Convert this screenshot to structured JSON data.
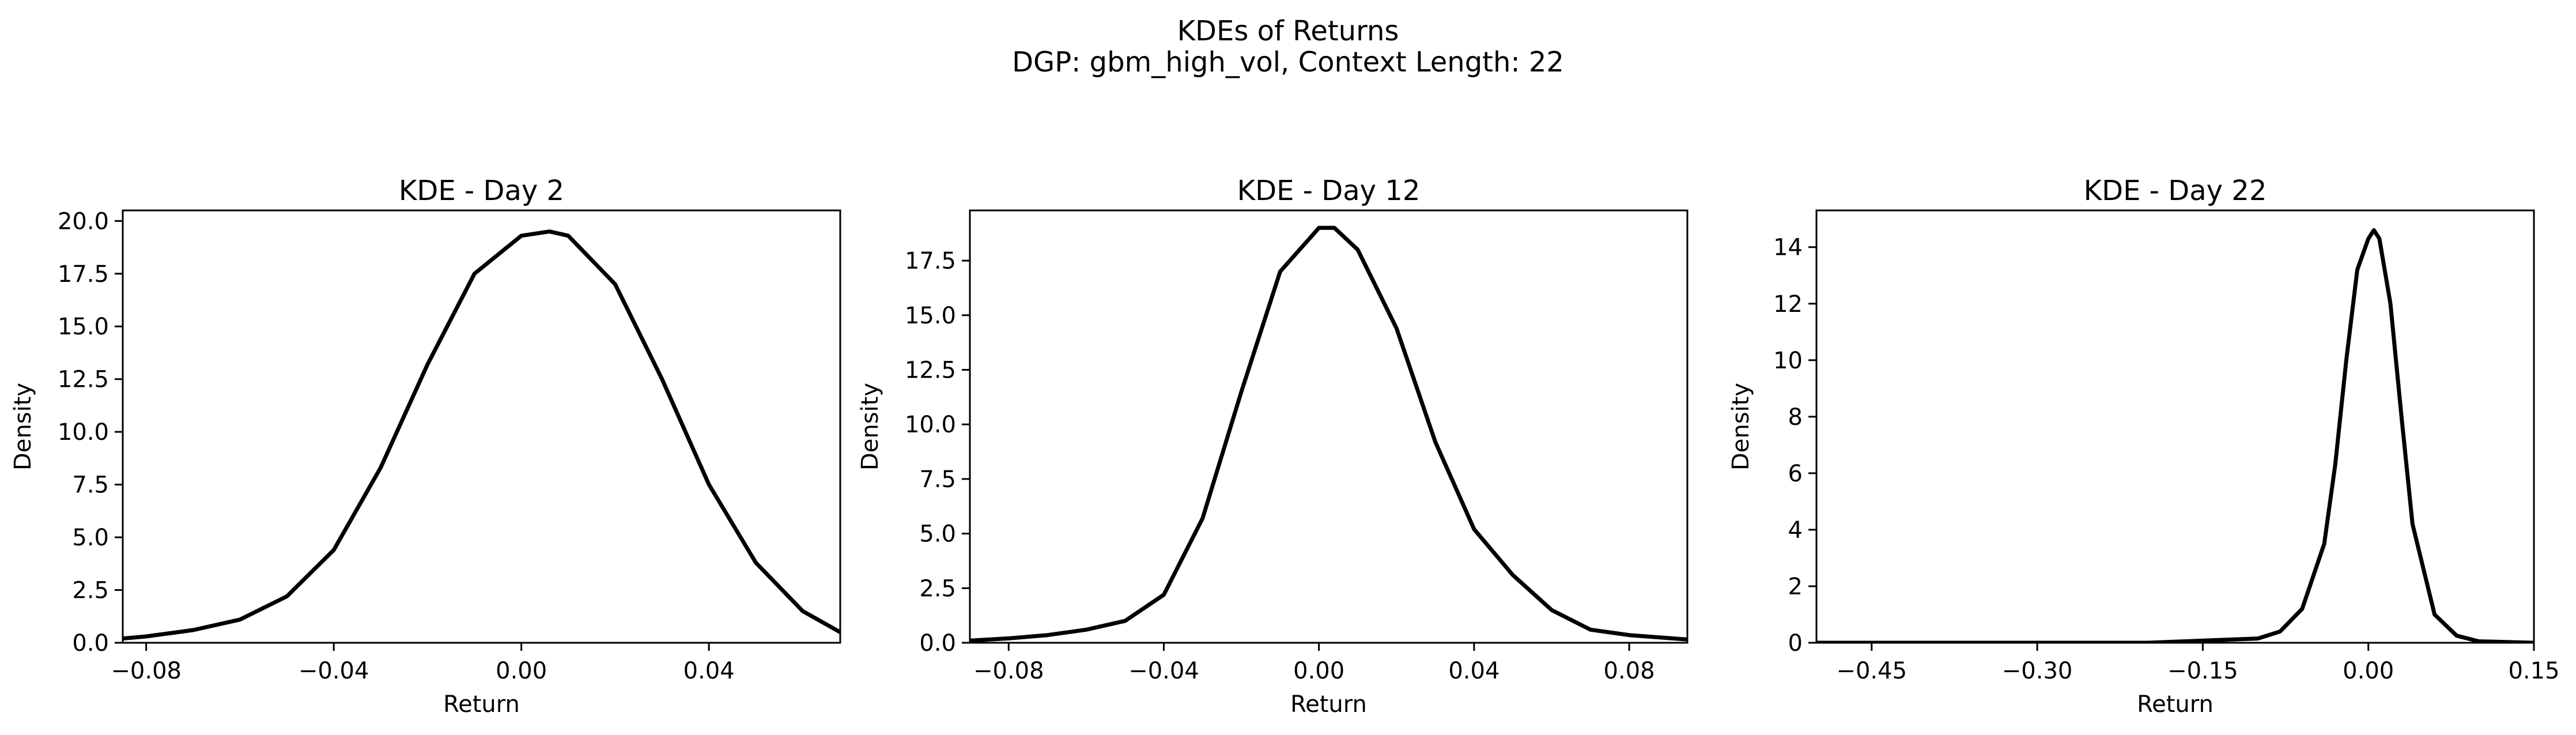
{
  "figure": {
    "title_line1": "KDEs of Returns",
    "title_line2": "DGP: gbm_high_vol, Context Length: 22"
  },
  "chart_data": [
    {
      "type": "line",
      "title": "KDE - Day 2",
      "xlabel": "Return",
      "ylabel": "Density",
      "xlim": [
        -0.085,
        0.068
      ],
      "ylim": [
        0,
        20.5
      ],
      "xticks": [
        -0.08,
        -0.04,
        0.0,
        0.04
      ],
      "xtick_labels": [
        "−0.08",
        "−0.04",
        "0.00",
        "0.04"
      ],
      "yticks": [
        0,
        2.5,
        5,
        7.5,
        10,
        12.5,
        15,
        17.5,
        20
      ],
      "ytick_labels": [
        "0.0",
        "2.5",
        "5.0",
        "7.5",
        "10.0",
        "12.5",
        "15.0",
        "17.5",
        "20.0"
      ],
      "grid": false,
      "color": "#000000",
      "series": [
        {
          "x": [
            -0.085,
            -0.08,
            -0.07,
            -0.06,
            -0.05,
            -0.04,
            -0.03,
            -0.02,
            -0.01,
            0.0,
            0.006,
            0.01,
            0.02,
            0.03,
            0.04,
            0.05,
            0.06,
            0.068
          ],
          "values": [
            0.2,
            0.3,
            0.6,
            1.1,
            2.2,
            4.4,
            8.3,
            13.2,
            17.5,
            19.3,
            19.5,
            19.3,
            17.0,
            12.5,
            7.5,
            3.8,
            1.5,
            0.5
          ]
        }
      ]
    },
    {
      "type": "line",
      "title": "KDE - Day 12",
      "xlabel": "Return",
      "ylabel": "Density",
      "xlim": [
        -0.09,
        0.095
      ],
      "ylim": [
        0,
        19.8
      ],
      "xticks": [
        -0.08,
        -0.04,
        0.0,
        0.04,
        0.08
      ],
      "xtick_labels": [
        "−0.08",
        "−0.04",
        "0.00",
        "0.04",
        "0.08"
      ],
      "yticks": [
        0,
        2.5,
        5,
        7.5,
        10,
        12.5,
        15,
        17.5
      ],
      "ytick_labels": [
        "0.0",
        "2.5",
        "5.0",
        "7.5",
        "10.0",
        "12.5",
        "15.0",
        "17.5"
      ],
      "grid": false,
      "color": "#000000",
      "series": [
        {
          "x": [
            -0.09,
            -0.08,
            -0.07,
            -0.06,
            -0.05,
            -0.04,
            -0.03,
            -0.02,
            -0.01,
            0.0,
            0.004,
            0.01,
            0.02,
            0.03,
            0.04,
            0.05,
            0.06,
            0.07,
            0.08,
            0.095
          ],
          "values": [
            0.1,
            0.2,
            0.35,
            0.6,
            1.0,
            2.2,
            5.7,
            11.5,
            17.0,
            19.0,
            19.0,
            18.0,
            14.4,
            9.2,
            5.2,
            3.1,
            1.5,
            0.6,
            0.35,
            0.15
          ]
        }
      ]
    },
    {
      "type": "line",
      "title": "KDE - Day 22",
      "xlabel": "Return",
      "ylabel": "Density",
      "xlim": [
        -0.5,
        0.15
      ],
      "ylim": [
        0,
        15.3
      ],
      "xticks": [
        -0.45,
        -0.3,
        -0.15,
        0.0,
        0.15
      ],
      "xtick_labels": [
        "−0.45",
        "−0.30",
        "−0.15",
        "0.00",
        "0.15"
      ],
      "yticks": [
        0,
        2,
        4,
        6,
        8,
        10,
        12,
        14
      ],
      "ytick_labels": [
        "0",
        "2",
        "4",
        "6",
        "8",
        "10",
        "12",
        "14"
      ],
      "grid": false,
      "color": "#000000",
      "series": [
        {
          "x": [
            -0.5,
            -0.2,
            -0.1,
            -0.08,
            -0.06,
            -0.04,
            -0.03,
            -0.02,
            -0.01,
            0.0,
            0.005,
            0.01,
            0.02,
            0.03,
            0.04,
            0.06,
            0.08,
            0.1,
            0.15
          ],
          "values": [
            0.0,
            0.0,
            0.15,
            0.4,
            1.2,
            3.5,
            6.3,
            10.0,
            13.2,
            14.3,
            14.6,
            14.3,
            12.0,
            8.0,
            4.2,
            1.0,
            0.25,
            0.05,
            0.0
          ]
        }
      ]
    }
  ]
}
